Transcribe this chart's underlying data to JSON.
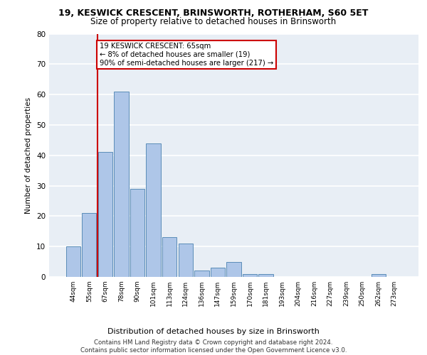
{
  "title1": "19, KESWICK CRESCENT, BRINSWORTH, ROTHERHAM, S60 5ET",
  "title2": "Size of property relative to detached houses in Brinsworth",
  "xlabel": "Distribution of detached houses by size in Brinsworth",
  "ylabel": "Number of detached properties",
  "categories": [
    "44sqm",
    "55sqm",
    "67sqm",
    "78sqm",
    "90sqm",
    "101sqm",
    "113sqm",
    "124sqm",
    "136sqm",
    "147sqm",
    "159sqm",
    "170sqm",
    "181sqm",
    "193sqm",
    "204sqm",
    "216sqm",
    "227sqm",
    "239sqm",
    "250sqm",
    "262sqm",
    "273sqm"
  ],
  "values": [
    10,
    21,
    41,
    61,
    29,
    44,
    13,
    11,
    2,
    3,
    5,
    1,
    1,
    0,
    0,
    0,
    0,
    0,
    0,
    1,
    0
  ],
  "bar_color": "#aec6e8",
  "bar_edge_color": "#5b8db8",
  "vline_color": "#cc0000",
  "annotation_text": "19 KESWICK CRESCENT: 65sqm\n← 8% of detached houses are smaller (19)\n90% of semi-detached houses are larger (217) →",
  "annotation_box_color": "#ffffff",
  "annotation_box_edge": "#cc0000",
  "ylim": [
    0,
    80
  ],
  "yticks": [
    0,
    10,
    20,
    30,
    40,
    50,
    60,
    70,
    80
  ],
  "bg_color": "#e8eef5",
  "grid_color": "#ffffff",
  "footer": "Contains HM Land Registry data © Crown copyright and database right 2024.\nContains public sector information licensed under the Open Government Licence v3.0."
}
